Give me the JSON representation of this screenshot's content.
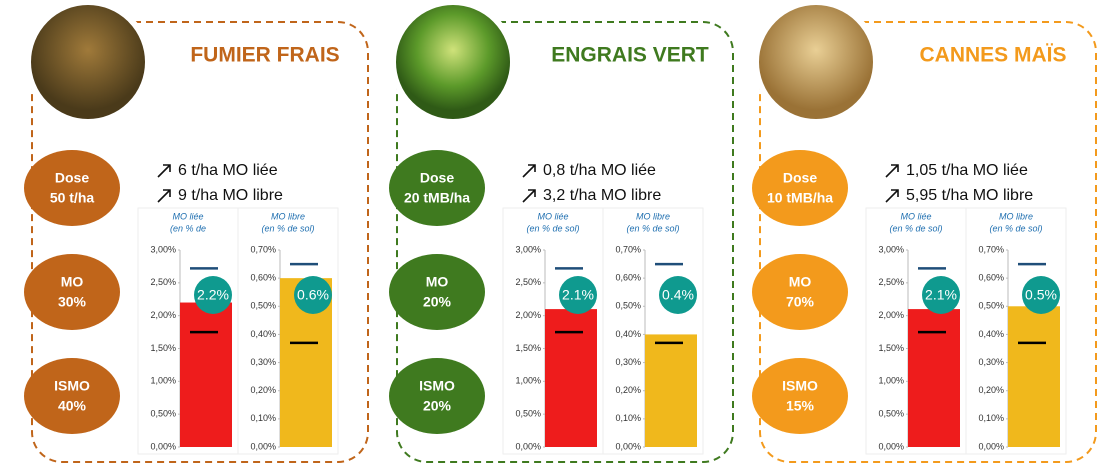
{
  "panels": [
    {
      "title": "FUMIER FRAIS",
      "color": "#c0651a",
      "dose": {
        "label": "Dose",
        "value": "50 t/ha"
      },
      "mo": {
        "label": "MO",
        "value": "30%"
      },
      "ismo": {
        "label": "ISMO",
        "value": "40%"
      },
      "gains": [
        "6 t/ha MO liée",
        "9 t/ha MO libre"
      ],
      "chart_data": [
        {
          "type": "bar",
          "title": [
            "MO liée",
            "(en % de"
          ],
          "color": "#ee1c1c",
          "values": [
            2.2
          ],
          "value_labels": [
            "2.2%"
          ],
          "ylim": [
            0,
            3
          ],
          "yticks": [
            {
              "value": 0,
              "label": "0,00%"
            },
            {
              "value": 0.5,
              "label": "0,50%"
            },
            {
              "value": 1,
              "label": "1,00%"
            },
            {
              "value": 1.5,
              "label": "1,50%"
            },
            {
              "value": 2,
              "label": "2,00%"
            },
            {
              "value": 2.5,
              "label": "2,50%"
            },
            {
              "value": 3,
              "label": "3,00%"
            }
          ],
          "markers": [
            {
              "value": 2.72,
              "color": "#1f4e79"
            },
            {
              "value": 1.75,
              "color": "#000000"
            }
          ]
        },
        {
          "type": "bar",
          "title": [
            "MO libre",
            "(en % de sol)"
          ],
          "color": "#f0b81c",
          "values": [
            0.6
          ],
          "value_labels": [
            "0.6%"
          ],
          "ylim": [
            0,
            0.7
          ],
          "yticks": [
            {
              "value": 0,
              "label": "0,00%"
            },
            {
              "value": 0.1,
              "label": "0,10%"
            },
            {
              "value": 0.2,
              "label": "0,20%"
            },
            {
              "value": 0.3,
              "label": "0,30%"
            },
            {
              "value": 0.4,
              "label": "0,40%"
            },
            {
              "value": 0.5,
              "label": "0,50%"
            },
            {
              "value": 0.6,
              "label": "0,60%"
            },
            {
              "value": 0.7,
              "label": "0,70%"
            }
          ],
          "markers": [
            {
              "value": 0.65,
              "color": "#1f4e79"
            },
            {
              "value": 0.37,
              "color": "#000000"
            }
          ]
        }
      ]
    },
    {
      "title": "ENGRAIS VERT",
      "color": "#3f7a1f",
      "dose": {
        "label": "Dose",
        "value": "20 tMB/ha"
      },
      "mo": {
        "label": "MO",
        "value": "20%"
      },
      "ismo": {
        "label": "ISMO",
        "value": "20%"
      },
      "gains": [
        "0,8 t/ha MO liée",
        "3,2 t/ha MO libre"
      ],
      "chart_data": [
        {
          "type": "bar",
          "title": [
            "MO liée",
            "(en % de sol)"
          ],
          "color": "#ee1c1c",
          "values": [
            2.1
          ],
          "value_labels": [
            "2.1%"
          ],
          "ylim": [
            0,
            3
          ],
          "yticks": [
            {
              "value": 0,
              "label": "0,00%"
            },
            {
              "value": 0.5,
              "label": "0,50%"
            },
            {
              "value": 1,
              "label": "1,00%"
            },
            {
              "value": 1.5,
              "label": "1,50%"
            },
            {
              "value": 2,
              "label": "2,00%"
            },
            {
              "value": 2.5,
              "label": "2,50%"
            },
            {
              "value": 3,
              "label": "3,00%"
            }
          ],
          "markers": [
            {
              "value": 2.72,
              "color": "#1f4e79"
            },
            {
              "value": 1.75,
              "color": "#000000"
            }
          ]
        },
        {
          "type": "bar",
          "title": [
            "MO libre",
            "(en % de sol)"
          ],
          "color": "#f0b81c",
          "values": [
            0.4
          ],
          "value_labels": [
            "0.4%"
          ],
          "ylim": [
            0,
            0.7
          ],
          "yticks": [
            {
              "value": 0,
              "label": "0,00%"
            },
            {
              "value": 0.1,
              "label": "0,10%"
            },
            {
              "value": 0.2,
              "label": "0,20%"
            },
            {
              "value": 0.3,
              "label": "0,30%"
            },
            {
              "value": 0.4,
              "label": "0,40%"
            },
            {
              "value": 0.5,
              "label": "0,50%"
            },
            {
              "value": 0.6,
              "label": "0,60%"
            },
            {
              "value": 0.7,
              "label": "0,70%"
            }
          ],
          "markers": [
            {
              "value": 0.65,
              "color": "#1f4e79"
            },
            {
              "value": 0.37,
              "color": "#000000"
            }
          ]
        }
      ]
    },
    {
      "title": "CANNES MAÏS",
      "color": "#f39a1c",
      "dose": {
        "label": "Dose",
        "value": "10 tMB/ha"
      },
      "mo": {
        "label": "MO",
        "value": "70%"
      },
      "ismo": {
        "label": "ISMO",
        "value": "15%"
      },
      "gains": [
        "1,05 t/ha MO liée",
        "5,95 t/ha MO libre"
      ],
      "chart_data": [
        {
          "type": "bar",
          "title": [
            "MO liée",
            "(en % de sol)"
          ],
          "color": "#ee1c1c",
          "values": [
            2.1
          ],
          "value_labels": [
            "2.1%"
          ],
          "ylim": [
            0,
            3
          ],
          "yticks": [
            {
              "value": 0,
              "label": "0,00%"
            },
            {
              "value": 0.5,
              "label": "0,50%"
            },
            {
              "value": 1,
              "label": "1,00%"
            },
            {
              "value": 1.5,
              "label": "1,50%"
            },
            {
              "value": 2,
              "label": "2,00%"
            },
            {
              "value": 2.5,
              "label": "2,50%"
            },
            {
              "value": 3,
              "label": "3,00%"
            }
          ],
          "markers": [
            {
              "value": 2.72,
              "color": "#1f4e79"
            },
            {
              "value": 1.75,
              "color": "#000000"
            }
          ]
        },
        {
          "type": "bar",
          "title": [
            "MO libre",
            "(en % de sol)"
          ],
          "color": "#f0b81c",
          "values": [
            0.5
          ],
          "value_labels": [
            "0.5%"
          ],
          "ylim": [
            0,
            0.7
          ],
          "yticks": [
            {
              "value": 0,
              "label": "0,00%"
            },
            {
              "value": 0.1,
              "label": "0,10%"
            },
            {
              "value": 0.2,
              "label": "0,20%"
            },
            {
              "value": 0.3,
              "label": "0,30%"
            },
            {
              "value": 0.4,
              "label": "0,40%"
            },
            {
              "value": 0.5,
              "label": "0,50%"
            },
            {
              "value": 0.6,
              "label": "0,60%"
            },
            {
              "value": 0.7,
              "label": "0,70%"
            }
          ],
          "markers": [
            {
              "value": 0.65,
              "color": "#1f4e79"
            },
            {
              "value": 0.37,
              "color": "#000000"
            }
          ]
        }
      ]
    }
  ]
}
